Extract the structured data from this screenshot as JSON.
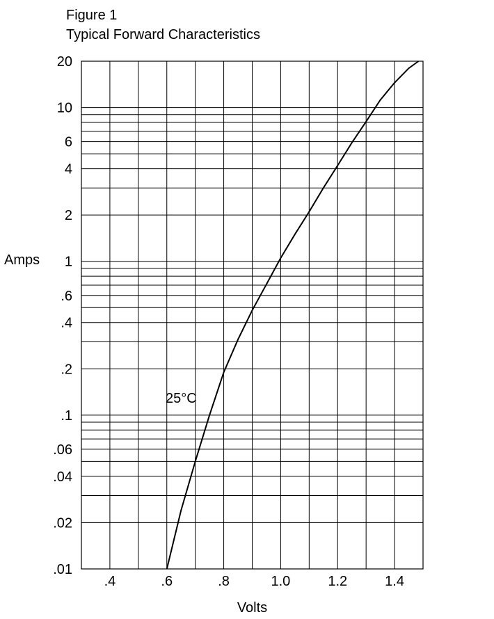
{
  "figure_label": "Figure 1",
  "chart_data": {
    "type": "line",
    "title": "Typical Forward Characteristics",
    "xlabel": "Volts",
    "ylabel": "Amps",
    "x_scale": "linear",
    "y_scale": "log",
    "xlim": [
      0.3,
      1.5
    ],
    "ylim": [
      0.01,
      20
    ],
    "grid": true,
    "x_grid": [
      0.3,
      0.4,
      0.5,
      0.6,
      0.7,
      0.8,
      0.9,
      1.0,
      1.1,
      1.2,
      1.3,
      1.4,
      1.5
    ],
    "y_grid": [
      0.01,
      0.02,
      0.03,
      0.04,
      0.05,
      0.06,
      0.07,
      0.08,
      0.09,
      0.1,
      0.2,
      0.3,
      0.4,
      0.5,
      0.6,
      0.7,
      0.8,
      0.9,
      1,
      2,
      3,
      4,
      5,
      6,
      7,
      8,
      9,
      10,
      20
    ],
    "x_ticks": [
      {
        "value": 0.4,
        "label": ".4"
      },
      {
        "value": 0.6,
        "label": ".6"
      },
      {
        "value": 0.8,
        "label": ".8"
      },
      {
        "value": 1.0,
        "label": "1.0"
      },
      {
        "value": 1.2,
        "label": "1.2"
      },
      {
        "value": 1.4,
        "label": "1.4"
      }
    ],
    "y_ticks": [
      {
        "value": 20,
        "label": "20"
      },
      {
        "value": 10,
        "label": "10"
      },
      {
        "value": 6,
        "label": "6"
      },
      {
        "value": 4,
        "label": "4"
      },
      {
        "value": 2,
        "label": "2"
      },
      {
        "value": 1,
        "label": "1"
      },
      {
        "value": 0.6,
        "label": ".6"
      },
      {
        "value": 0.4,
        "label": ".4"
      },
      {
        "value": 0.2,
        "label": ".2"
      },
      {
        "value": 0.1,
        "label": ".1"
      },
      {
        "value": 0.06,
        "label": ".06"
      },
      {
        "value": 0.04,
        "label": ".04"
      },
      {
        "value": 0.02,
        "label": ".02"
      },
      {
        "value": 0.01,
        "label": ".01"
      }
    ],
    "series": [
      {
        "name": "25°C",
        "x": [
          0.6,
          0.65,
          0.7,
          0.75,
          0.8,
          0.85,
          0.9,
          0.95,
          1.0,
          1.05,
          1.1,
          1.15,
          1.2,
          1.25,
          1.3,
          1.35,
          1.4,
          1.45,
          1.5
        ],
        "y": [
          0.01,
          0.024,
          0.05,
          0.1,
          0.19,
          0.31,
          0.48,
          0.71,
          1.05,
          1.5,
          2.1,
          3.0,
          4.2,
          5.9,
          8.1,
          11.2,
          14.5,
          18.0,
          21.0
        ]
      }
    ]
  }
}
